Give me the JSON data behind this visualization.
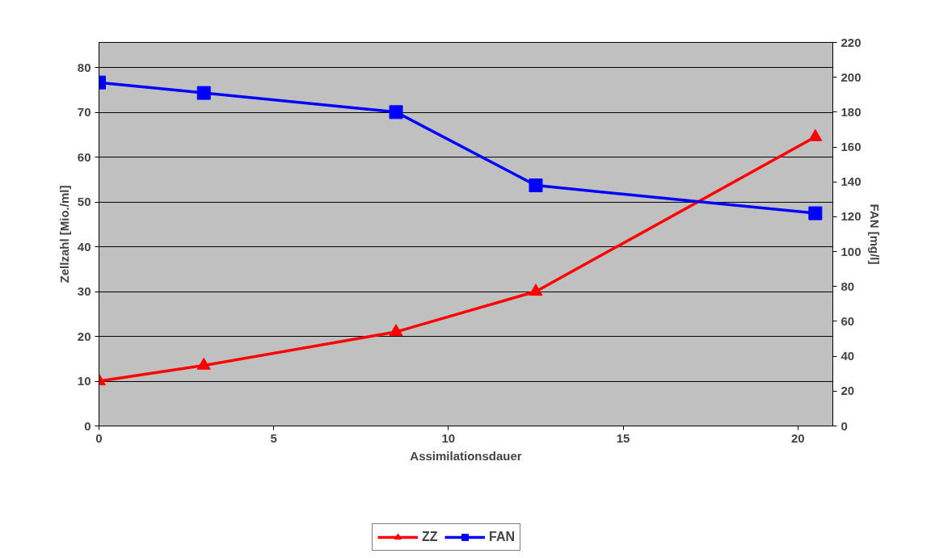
{
  "chart_data": {
    "type": "line",
    "xlabel": "Assimilationsdauer",
    "ylabel": "Zellzahl [Mio./ml]",
    "y2label": "FAN [mg/l]",
    "x": [
      0,
      3,
      8.5,
      12.5,
      20.5
    ],
    "series": [
      {
        "name": "ZZ",
        "color": "#ff0000",
        "values": [
          10,
          13.5,
          21,
          30,
          64.5
        ],
        "marker": "triangle"
      },
      {
        "name": "FAN",
        "color": "#0000ff",
        "values": [
          197,
          191,
          180,
          138,
          122
        ],
        "marker": "square",
        "axis": "y2"
      }
    ],
    "xlim": [
      0,
      21
    ],
    "xticks": [
      0,
      5,
      10,
      15,
      20
    ],
    "ylim": [
      0,
      85.6
    ],
    "yticks": [
      0,
      10,
      20,
      30,
      40,
      50,
      60,
      70,
      80
    ],
    "y2lim": [
      0,
      220
    ],
    "y2ticks": [
      0,
      20,
      40,
      60,
      80,
      100,
      120,
      140,
      160,
      180,
      200,
      220
    ],
    "grid": "y",
    "legend": "bottom",
    "line_style": "solid"
  }
}
